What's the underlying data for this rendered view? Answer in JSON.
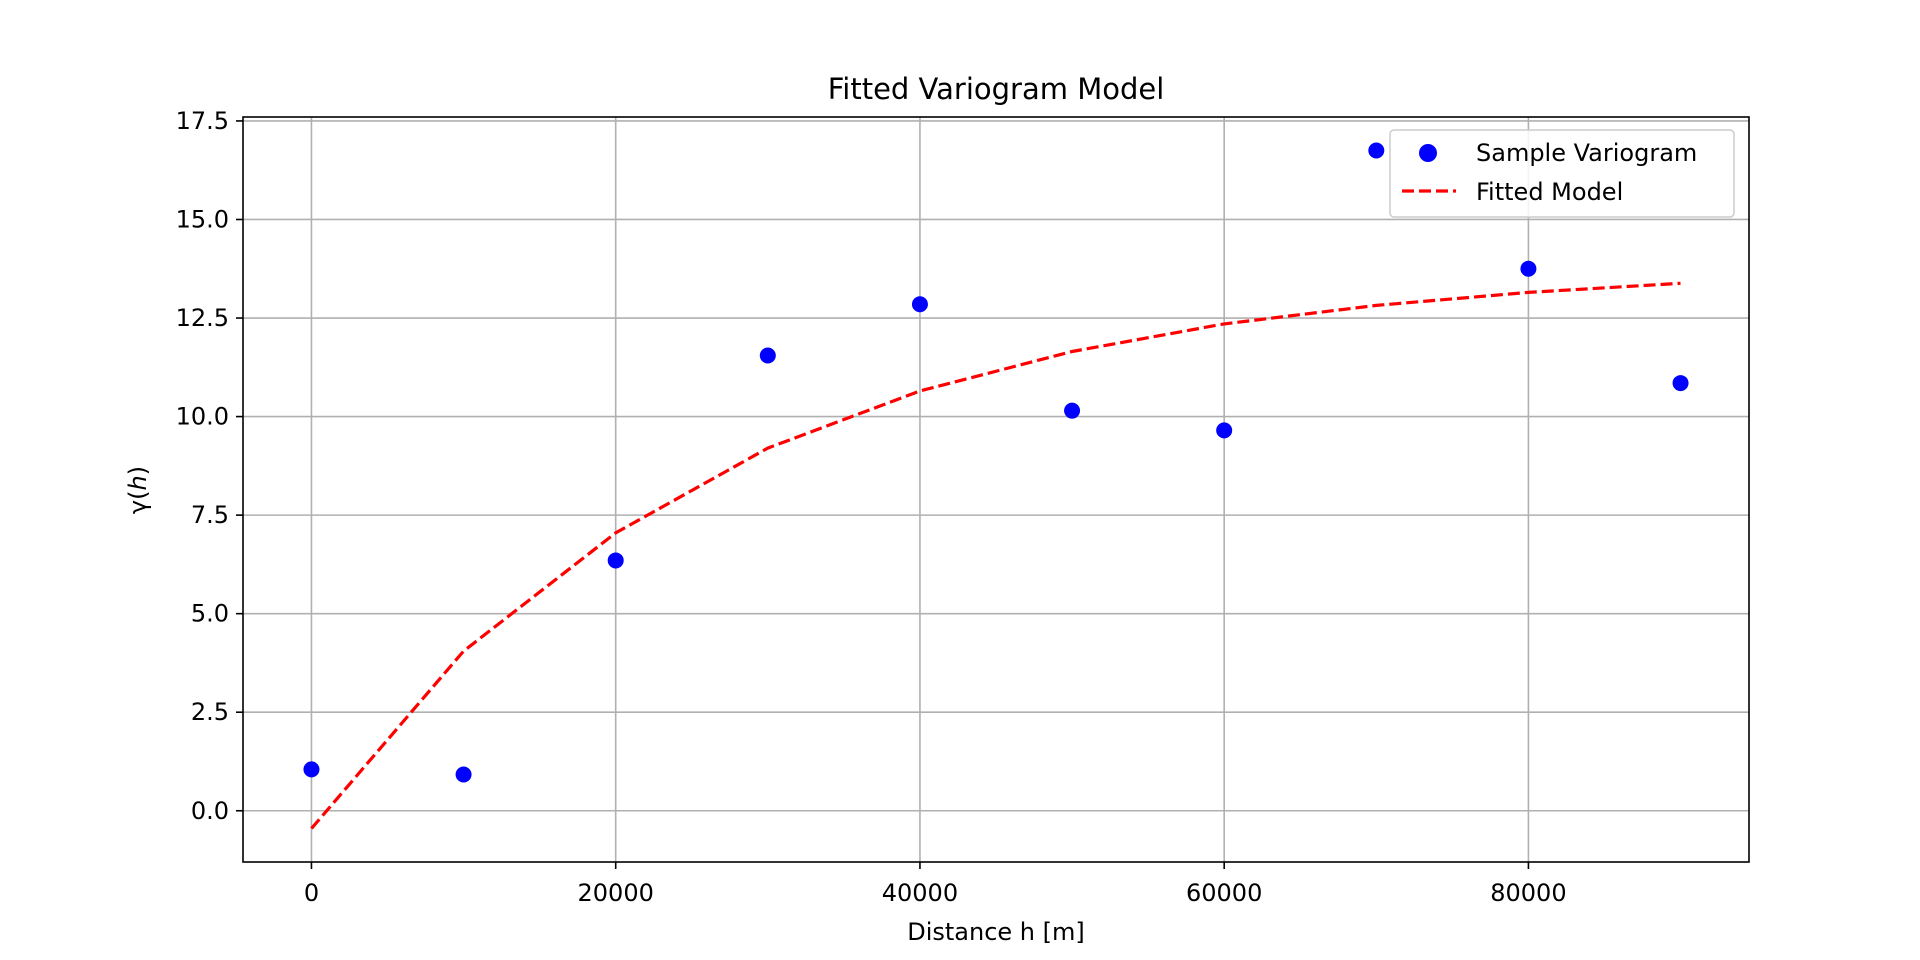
{
  "chart_data": {
    "type": "scatter",
    "title": "Fitted Variogram Model",
    "xlabel": "Distance h [m]",
    "ylabel": {
      "prefix": "γ(",
      "var": "h",
      "suffix": ")"
    },
    "xlim": [
      -4500,
      94500
    ],
    "ylim": [
      -1.3,
      17.6
    ],
    "xticks": [
      0,
      20000,
      40000,
      60000,
      80000
    ],
    "xtick_labels": [
      "0",
      "20000",
      "40000",
      "60000",
      "80000"
    ],
    "yticks": [
      0,
      2.5,
      5,
      7.5,
      10,
      12.5,
      15,
      17.5
    ],
    "ytick_labels": [
      "0.0",
      "2.5",
      "5.0",
      "7.5",
      "10.0",
      "12.5",
      "15.0",
      "17.5"
    ],
    "grid": true,
    "legend_position": "top-right",
    "series": [
      {
        "name": "Sample Variogram",
        "kind": "scatter",
        "color": "#0000ff",
        "x": [
          0,
          10000,
          20000,
          30000,
          40000,
          50000,
          60000,
          70000,
          80000,
          90000
        ],
        "y": [
          1.05,
          0.92,
          6.35,
          11.55,
          12.85,
          10.15,
          9.65,
          16.75,
          13.75,
          10.85
        ]
      },
      {
        "name": "Fitted Model",
        "kind": "line",
        "style": "dashed",
        "color": "#ff0000",
        "x": [
          0,
          10000,
          20000,
          30000,
          40000,
          50000,
          60000,
          70000,
          80000,
          90000
        ],
        "y": [
          -0.45,
          4.05,
          7.05,
          9.2,
          10.65,
          11.65,
          12.35,
          12.82,
          13.15,
          13.38
        ]
      }
    ]
  }
}
